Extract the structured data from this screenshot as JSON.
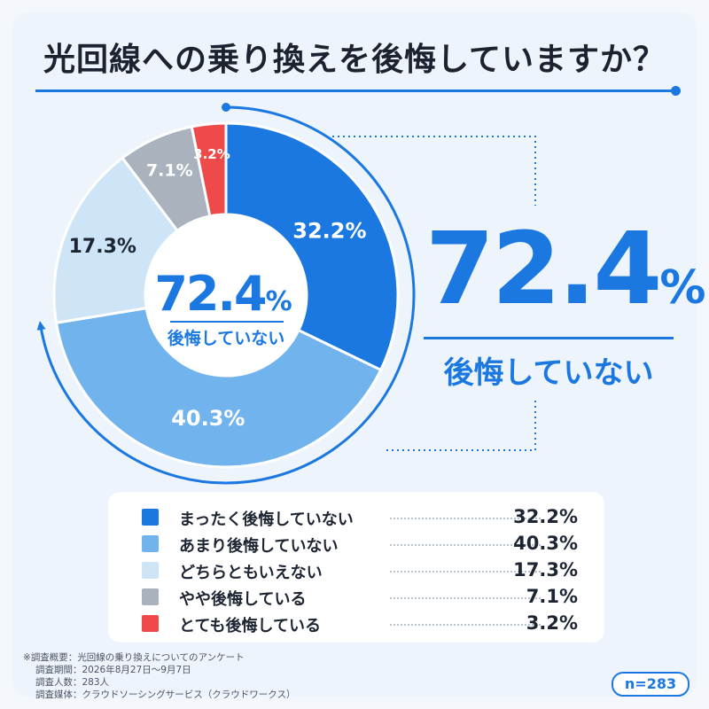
{
  "title": "光回線への乗り換えを後悔していますか？",
  "highlight": {
    "value": "72.4",
    "unit": "%",
    "label": "後悔していない"
  },
  "center": {
    "value": "72.4",
    "unit": "%",
    "label": "後悔していない"
  },
  "colors": [
    "#1a78e0",
    "#71b3ec",
    "#cde5f7",
    "#a9b2bd",
    "#ee4a4a"
  ],
  "chart_data": {
    "type": "pie",
    "title": "光回線への乗り換えを後悔していますか？",
    "categories": [
      "まったく後悔していない",
      "あまり後悔していない",
      "どちらともいえない",
      "やや後悔している",
      "とても後悔している"
    ],
    "values": [
      32.2,
      40.3,
      17.3,
      7.1,
      3.2
    ],
    "labels": [
      "32.2%",
      "40.3%",
      "17.3%",
      "7.1%",
      "3.2%"
    ],
    "unit": "%",
    "legend": "bottom"
  },
  "notes": {
    "prefix": "※",
    "rows": [
      {
        "key": "調査概要",
        "value": "光回線の乗り換えについてのアンケート"
      },
      {
        "key": "調査期間",
        "value": "2026年8月27日～9月7日"
      },
      {
        "key": "調査人数",
        "value": "283人"
      },
      {
        "key": "調査媒体",
        "value": "クラウドソーシングサービス（クラウドワークス）"
      }
    ]
  },
  "sample": "n=283"
}
